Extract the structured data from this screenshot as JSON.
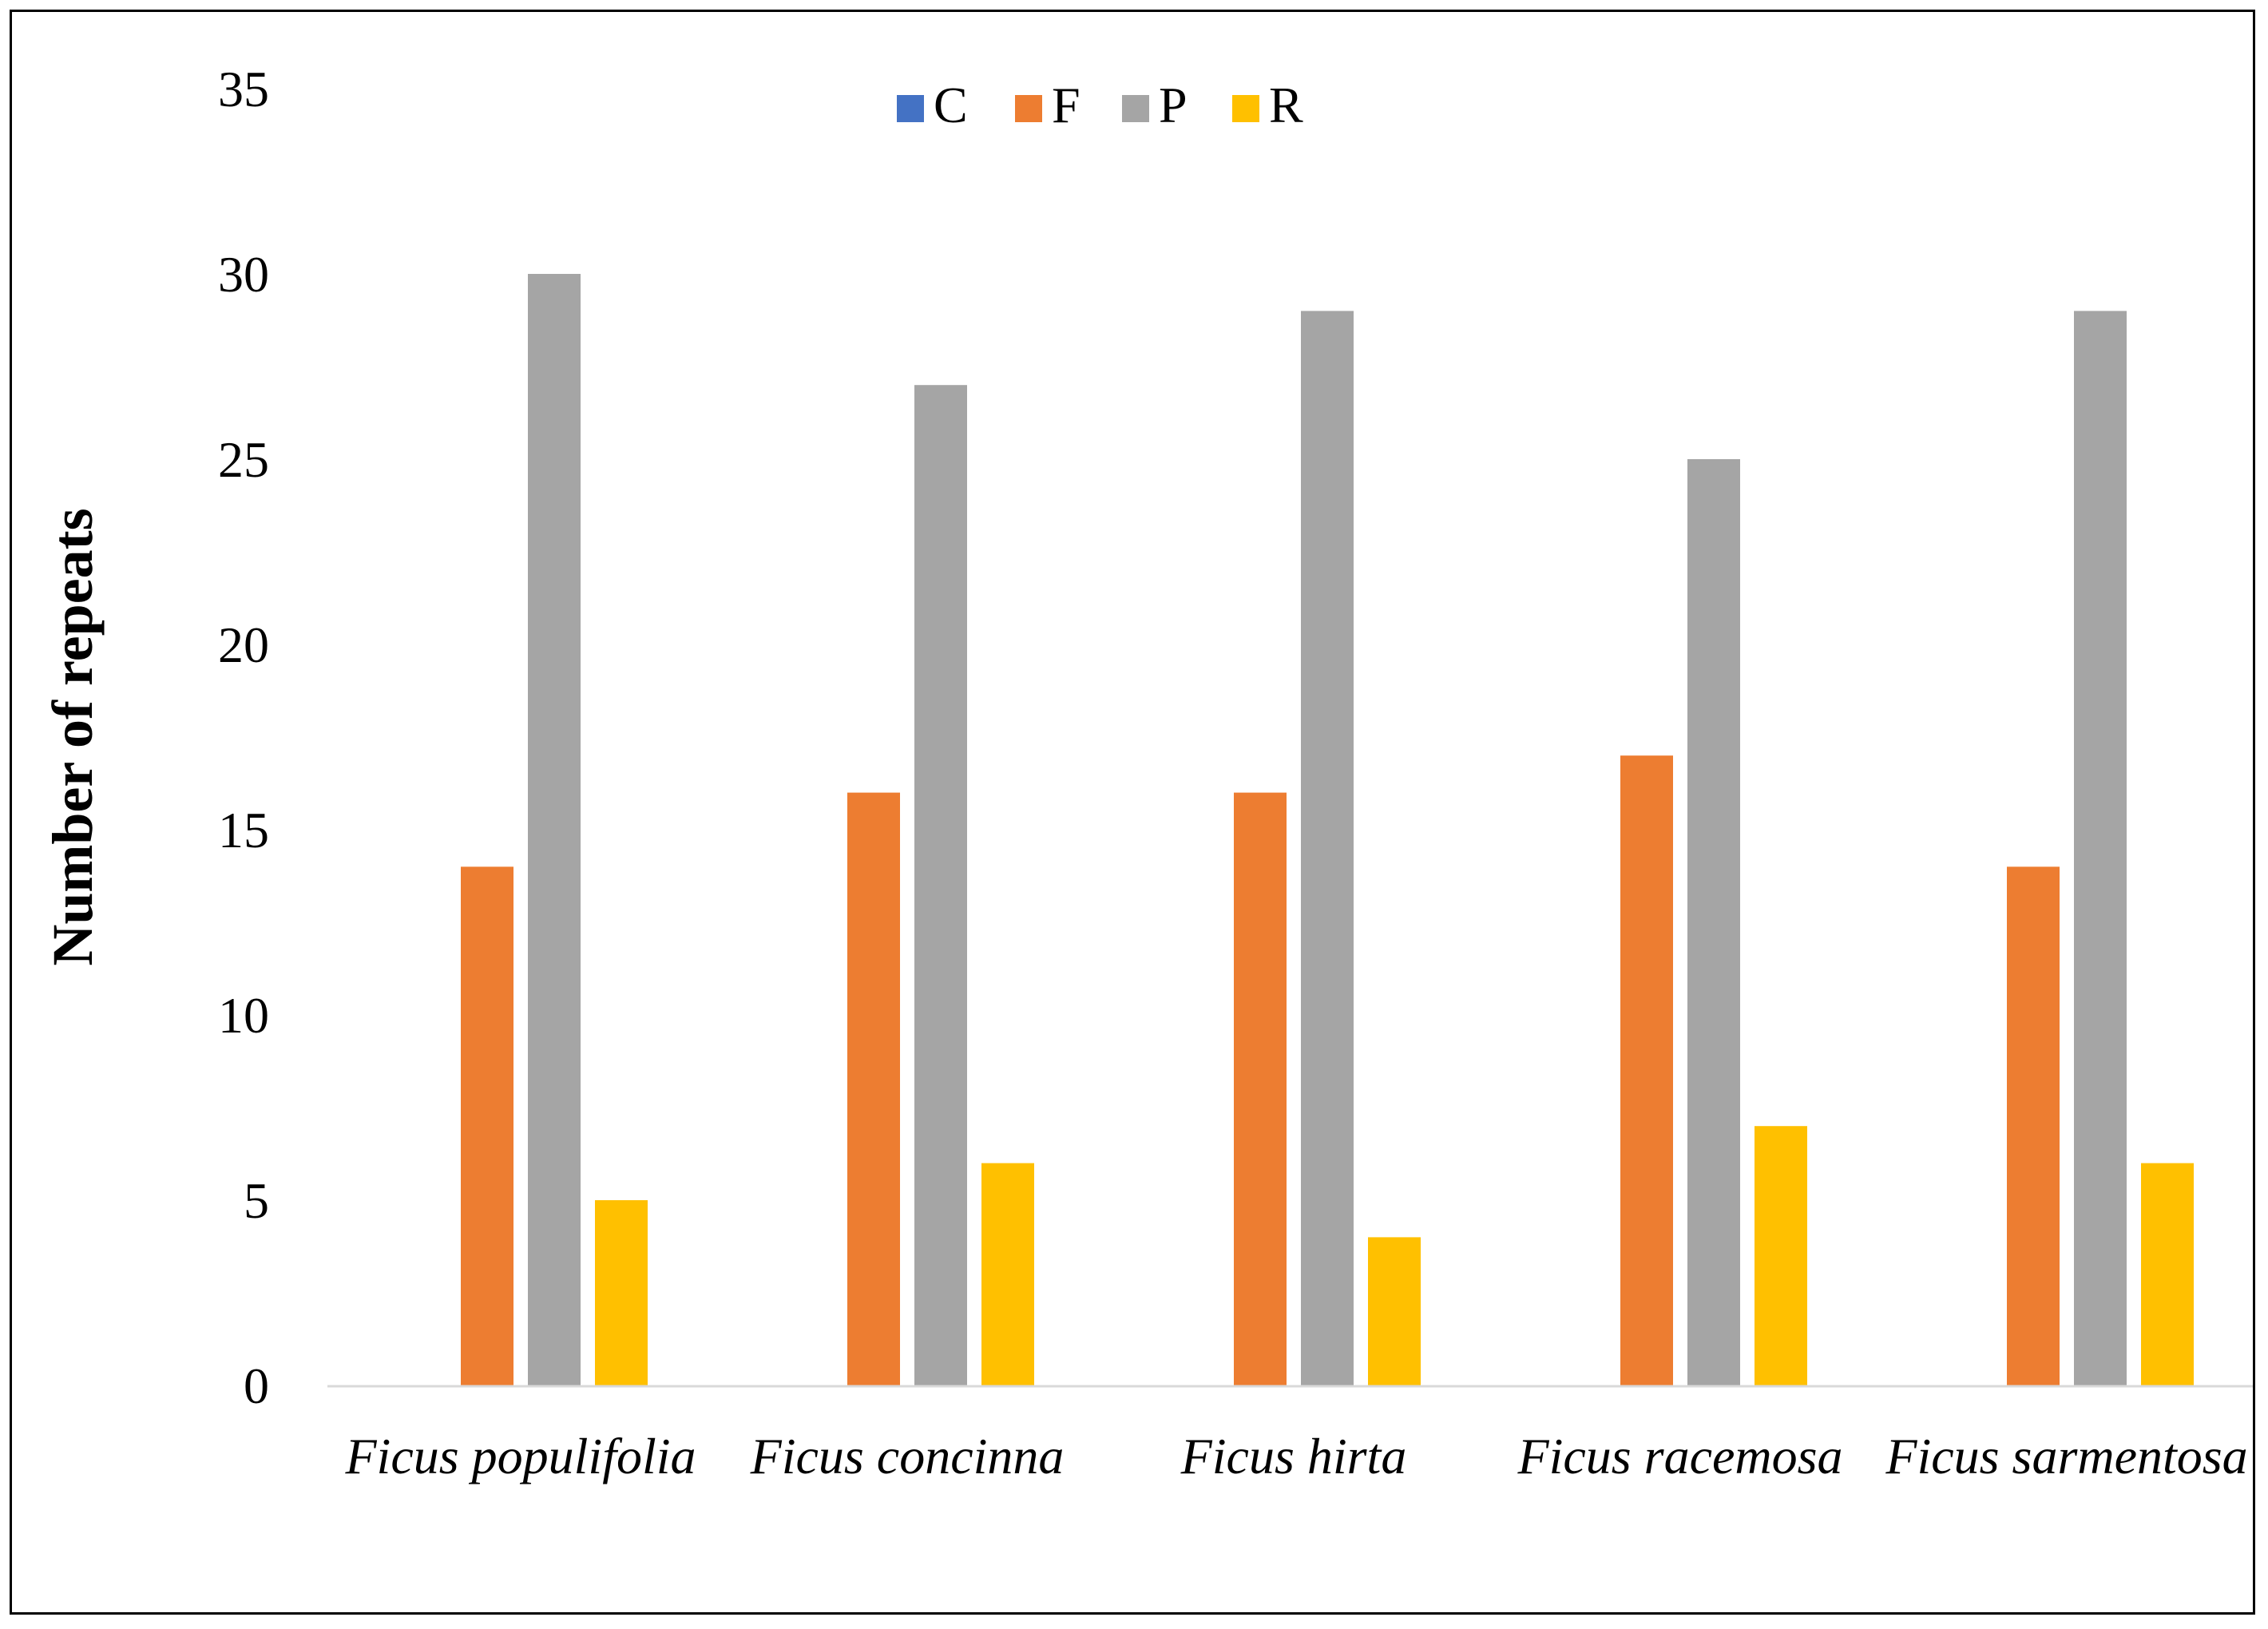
{
  "chart_data": {
    "type": "bar",
    "ylabel": "Number of repeats",
    "xlabel": "",
    "ylim": [
      0,
      35
    ],
    "yticks": [
      0,
      5,
      10,
      15,
      20,
      25,
      30,
      35
    ],
    "grid": false,
    "legend_position": "top-center",
    "categories": [
      "Ficus populifolia",
      "Ficus concinna",
      "Ficus hirta",
      "Ficus racemosa",
      "Ficus sarmentosa"
    ],
    "series": [
      {
        "name": "C",
        "color": "#4472C4",
        "values": [
          0,
          0,
          0,
          0,
          0
        ]
      },
      {
        "name": "F",
        "color": "#ED7D31",
        "values": [
          14,
          16,
          16,
          17,
          14
        ]
      },
      {
        "name": "P",
        "color": "#A5A5A5",
        "values": [
          30,
          27,
          29,
          25,
          29
        ]
      },
      {
        "name": "R",
        "color": "#FFC000",
        "values": [
          5,
          6,
          4,
          7,
          6
        ]
      }
    ]
  }
}
